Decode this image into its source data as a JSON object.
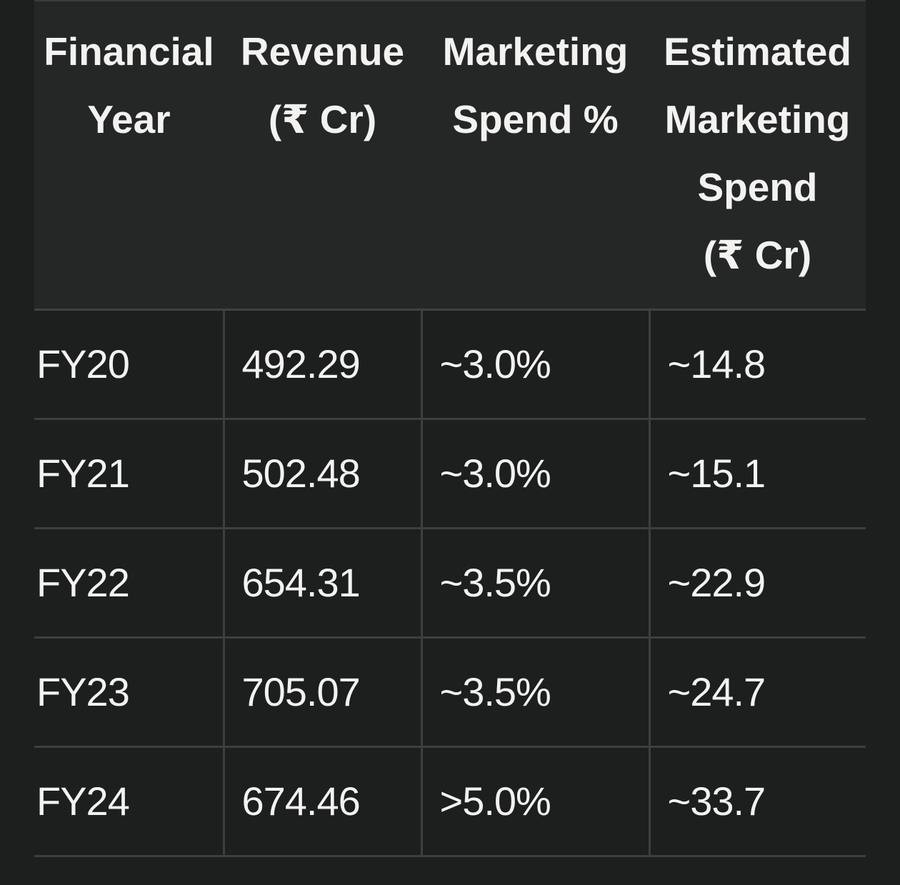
{
  "table": {
    "headers": [
      [
        "Financial",
        "Year"
      ],
      [
        "Revenue",
        "(₹ Cr)"
      ],
      [
        "Marketing",
        "Spend %"
      ],
      [
        "Estimated",
        "Marketing",
        "Spend",
        "(₹ Cr)"
      ]
    ],
    "rows": [
      [
        "FY20",
        "492.29",
        "~3.0%",
        "~14.8"
      ],
      [
        "FY21",
        "502.48",
        "~3.0%",
        "~15.1"
      ],
      [
        "FY22",
        "654.31",
        "~3.5%",
        "~22.9"
      ],
      [
        "FY23",
        "705.07",
        "~3.5%",
        "~24.7"
      ],
      [
        "FY24",
        "674.46",
        ">5.0%",
        "~33.7"
      ]
    ]
  },
  "colors": {
    "background": "#1d1e1e",
    "header_background": "#252626",
    "border": "#3d3e3e",
    "text": "#f2f2f0"
  }
}
